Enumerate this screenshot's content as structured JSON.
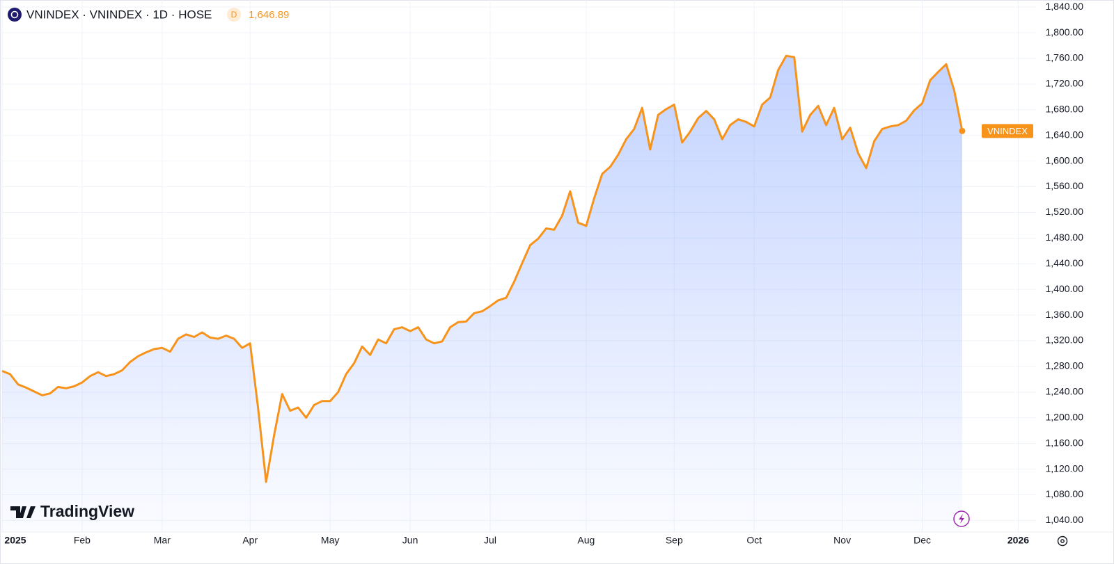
{
  "chart_data": {
    "type": "area",
    "title": "VNINDEX · VNINDEX · 1D · HOSE",
    "badge": "D",
    "last_price": {
      "value": 1646.89,
      "label": "1,646.89"
    },
    "watermark": "TradingView",
    "categories": [
      "2025",
      null,
      null,
      null,
      null,
      null,
      null,
      null,
      null,
      null,
      "Feb",
      null,
      null,
      null,
      null,
      null,
      null,
      null,
      null,
      null,
      "Mar",
      null,
      null,
      null,
      null,
      null,
      null,
      null,
      null,
      null,
      null,
      "Apr",
      null,
      null,
      null,
      null,
      null,
      null,
      null,
      null,
      null,
      "May",
      null,
      null,
      null,
      null,
      null,
      null,
      null,
      null,
      null,
      "Jun",
      null,
      null,
      null,
      null,
      null,
      null,
      null,
      null,
      null,
      "Jul",
      null,
      null,
      null,
      null,
      null,
      null,
      null,
      null,
      null,
      null,
      null,
      "Aug",
      null,
      null,
      null,
      null,
      null,
      null,
      null,
      null,
      null,
      null,
      "Sep",
      null,
      null,
      null,
      null,
      null,
      null,
      null,
      null,
      null,
      "Oct",
      null,
      null,
      null,
      null,
      null,
      null,
      null,
      null,
      null,
      null,
      "Nov",
      null,
      null,
      null,
      null,
      null,
      null,
      null,
      null,
      null,
      "Dec",
      null,
      null,
      null,
      null,
      null,
      null,
      null,
      null,
      null,
      null,
      null,
      "2026"
    ],
    "series": [
      {
        "name": "VNINDEX",
        "color": "#f7931a",
        "values": [
          1273,
          1268,
          1252,
          1247,
          1241,
          1235,
          1238,
          1248,
          1246,
          1249,
          1255,
          1265,
          1271,
          1265,
          1268,
          1274,
          1287,
          1296,
          1302,
          1307,
          1309,
          1303,
          1323,
          1330,
          1326,
          1333,
          1325,
          1323,
          1328,
          1323,
          1309,
          1316,
          1215,
          1100,
          1173,
          1237,
          1211,
          1216,
          1200,
          1220,
          1226,
          1226,
          1240,
          1268,
          1285,
          1311,
          1298,
          1322,
          1316,
          1338,
          1341,
          1335,
          1341,
          1322,
          1316,
          1319,
          1341,
          1349,
          1350,
          1363,
          1366,
          1374,
          1383,
          1387,
          1412,
          1441,
          1469,
          1479,
          1495,
          1493,
          1515,
          1553,
          1504,
          1499,
          1542,
          1580,
          1591,
          1610,
          1634,
          1650,
          1683,
          1618,
          1672,
          1681,
          1688,
          1629,
          1646,
          1667,
          1678,
          1665,
          1634,
          1656,
          1665,
          1661,
          1654,
          1688,
          1699,
          1742,
          1764,
          1762,
          1646,
          1672,
          1686,
          1656,
          1683,
          1634,
          1652,
          1612,
          1589,
          1631,
          1650,
          1654,
          1656,
          1663,
          1679,
          1690,
          1726,
          1739,
          1751,
          1710,
          1646.89,
          null,
          null,
          null,
          null,
          null,
          null,
          null
        ]
      }
    ],
    "ylim": [
      1022,
      1851
    ],
    "yticks": [
      {
        "value": 1040,
        "label": "1,040.00"
      },
      {
        "value": 1080,
        "label": "1,080.00"
      },
      {
        "value": 1120,
        "label": "1,120.00"
      },
      {
        "value": 1160,
        "label": "1,160.00"
      },
      {
        "value": 1200,
        "label": "1,200.00"
      },
      {
        "value": 1240,
        "label": "1,240.00"
      },
      {
        "value": 1280,
        "label": "1,280.00"
      },
      {
        "value": 1320,
        "label": "1,320.00"
      },
      {
        "value": 1360,
        "label": "1,360.00"
      },
      {
        "value": 1400,
        "label": "1,400.00"
      },
      {
        "value": 1440,
        "label": "1,440.00"
      },
      {
        "value": 1480,
        "label": "1,480.00"
      },
      {
        "value": 1520,
        "label": "1,520.00"
      },
      {
        "value": 1560,
        "label": "1,560.00"
      },
      {
        "value": 1600,
        "label": "1,600.00"
      },
      {
        "value": 1640,
        "label": "1,640.00"
      },
      {
        "value": 1680,
        "label": "1,680.00"
      },
      {
        "value": 1720,
        "label": "1,720.00"
      },
      {
        "value": 1760,
        "label": "1,760.00"
      },
      {
        "value": 1800,
        "label": "1,800.00"
      },
      {
        "value": 1840,
        "label": "1,840.00"
      }
    ],
    "grid": true
  }
}
